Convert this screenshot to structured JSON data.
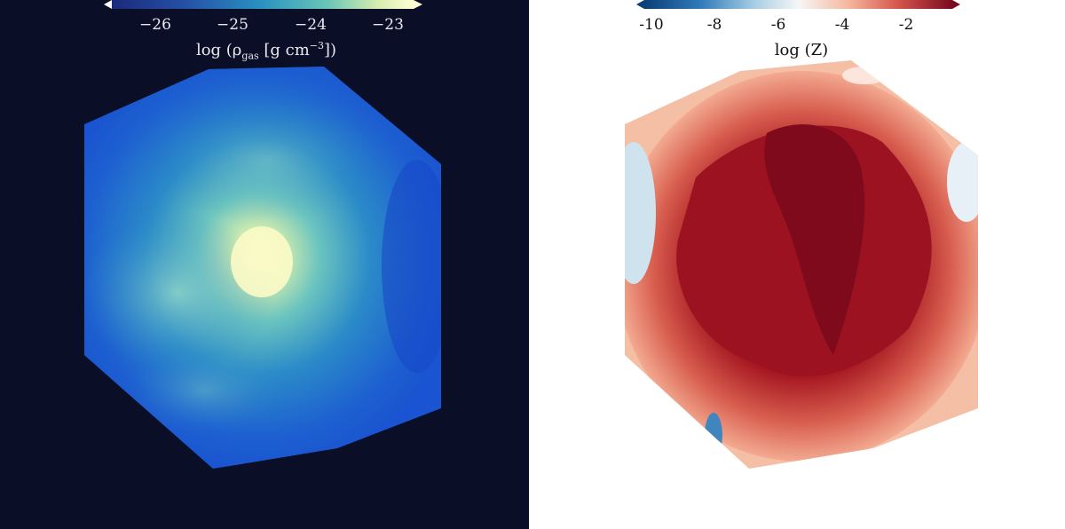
{
  "left_panel": {
    "colorbar": {
      "ticks": [
        "−26",
        "−25",
        "−24",
        "−23"
      ],
      "label_prefix": "log (ρ",
      "label_sub": "gas",
      "label_mid": " [g cm",
      "label_sup": "−3",
      "label_suffix": "])",
      "colormap": "YlGnBu (dark blue to pale yellow)"
    },
    "background_color": "#0a0e26"
  },
  "right_panel": {
    "colorbar": {
      "ticks": [
        "-10",
        "-8",
        "-6",
        "-4",
        "-2"
      ],
      "label": "log (Z)",
      "colormap": "RdBu reversed (blue to dark red)"
    },
    "background_color": "#ffffff"
  }
}
